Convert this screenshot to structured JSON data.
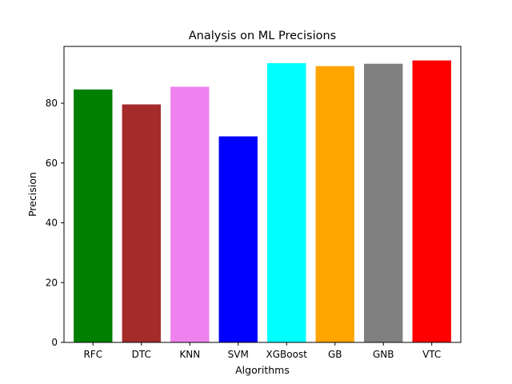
{
  "chart_data": {
    "type": "bar",
    "title": "Analysis on ML Precisions",
    "xlabel": "Algorithms",
    "ylabel": "Precision",
    "categories": [
      "RFC",
      "DTC",
      "KNN",
      "SVM",
      "XGBoost",
      "GB",
      "GNB",
      "VTC"
    ],
    "values": [
      84.6,
      79.6,
      85.5,
      68.9,
      93.4,
      92.4,
      93.2,
      94.3
    ],
    "colors": [
      "#008000",
      "#a52a2a",
      "#ee82ee",
      "#0000ff",
      "#00ffff",
      "#ffa500",
      "#808080",
      "#ff0000"
    ],
    "ylim": [
      0,
      99
    ],
    "yticks": [
      0,
      20,
      40,
      60,
      80
    ],
    "grid": false,
    "legend": "none"
  }
}
